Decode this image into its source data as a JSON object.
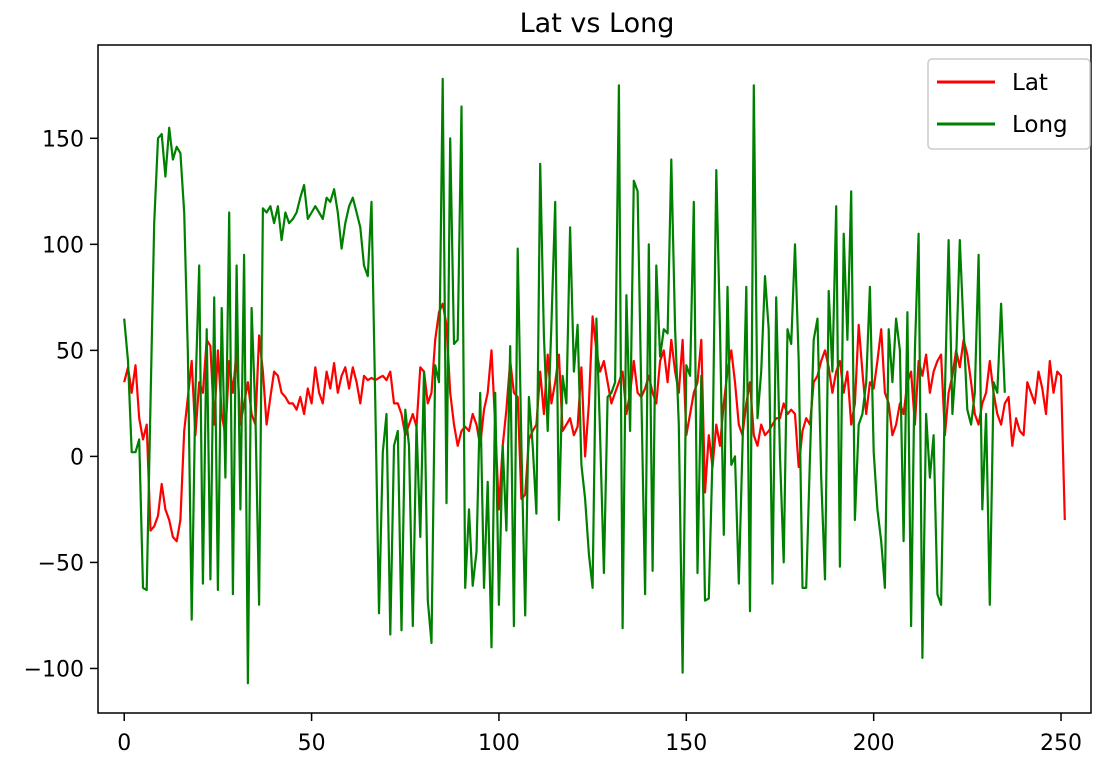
{
  "chart_data": {
    "type": "line",
    "title": "Lat vs Long",
    "xlabel": "",
    "ylabel": "",
    "xlim": [
      -7,
      258
    ],
    "ylim": [
      -121,
      194
    ],
    "x_ticks": [
      0,
      50,
      100,
      150,
      200,
      250
    ],
    "y_ticks": [
      -100,
      -50,
      0,
      50,
      100,
      150
    ],
    "x_tick_labels": [
      "0",
      "50",
      "100",
      "150",
      "200",
      "250"
    ],
    "y_tick_labels": [
      "−100",
      "−50",
      "0",
      "50",
      "100",
      "150"
    ],
    "grid": false,
    "legend_position": "top-right",
    "series": [
      {
        "name": "Lat",
        "color": "#ff0000",
        "values": [
          35,
          42,
          30,
          43,
          18,
          8,
          15,
          -35,
          -33,
          -28,
          -13,
          -25,
          -30,
          -38,
          -40,
          -30,
          12,
          28,
          45,
          10,
          35,
          30,
          55,
          52,
          15,
          50,
          20,
          10,
          45,
          30,
          50,
          15,
          25,
          35,
          20,
          15,
          57,
          40,
          15,
          28,
          40,
          38,
          30,
          28,
          25,
          25,
          22,
          28,
          20,
          32,
          25,
          42,
          30,
          25,
          40,
          32,
          44,
          30,
          38,
          42,
          32,
          42,
          35,
          25,
          38,
          36,
          37,
          36,
          37,
          38,
          36,
          40,
          25,
          25,
          20,
          10,
          15,
          20,
          14,
          42,
          40,
          25,
          30,
          55,
          68,
          72,
          62,
          30,
          15,
          5,
          12,
          14,
          12,
          20,
          15,
          5,
          22,
          30,
          50,
          15,
          -25,
          5,
          22,
          45,
          30,
          28,
          -20,
          -18,
          8,
          12,
          15,
          40,
          20,
          48,
          25,
          35,
          48,
          12,
          15,
          18,
          10,
          14,
          42,
          0,
          25,
          66,
          50,
          40,
          45,
          35,
          25,
          30,
          35,
          40,
          20,
          30,
          45,
          30,
          28,
          32,
          38,
          30,
          25,
          45,
          50,
          35,
          55,
          40,
          30,
          55,
          10,
          20,
          30,
          35,
          55,
          -17,
          10,
          -5,
          15,
          5,
          25,
          40,
          50,
          35,
          15,
          10,
          25,
          35,
          10,
          5,
          15,
          10,
          12,
          15,
          18,
          18,
          25,
          20,
          22,
          20,
          -5,
          12,
          18,
          15,
          35,
          38,
          45,
          50,
          42,
          30,
          40,
          45,
          30,
          40,
          15,
          25,
          62,
          40,
          20,
          35,
          32,
          45,
          60,
          30,
          25,
          10,
          15,
          25,
          20,
          35,
          40,
          15,
          45,
          38,
          48,
          30,
          40,
          45,
          48,
          10,
          30,
          38,
          50,
          42,
          55,
          48,
          35,
          20,
          15,
          25,
          30,
          45,
          30,
          20,
          15,
          25,
          28,
          5,
          18,
          12,
          10,
          35,
          30,
          25,
          40,
          32,
          20,
          45,
          30,
          40,
          38,
          -30
        ]
      },
      {
        "name": "Long",
        "color": "#008000",
        "values": [
          65,
          45,
          2,
          2,
          8,
          -62,
          -63,
          25,
          110,
          150,
          152,
          132,
          155,
          140,
          146,
          143,
          115,
          48,
          -77,
          30,
          90,
          -60,
          60,
          -58,
          75,
          -63,
          70,
          -10,
          115,
          -65,
          90,
          -25,
          95,
          -107,
          70,
          20,
          -70,
          117,
          115,
          118,
          110,
          118,
          102,
          115,
          110,
          112,
          115,
          122,
          128,
          112,
          115,
          118,
          115,
          112,
          122,
          120,
          126,
          115,
          98,
          110,
          118,
          122,
          115,
          108,
          90,
          85,
          120,
          25,
          -74,
          2,
          20,
          -84,
          5,
          12,
          -82,
          22,
          5,
          -80,
          15,
          -38,
          40,
          -68,
          -88,
          43,
          35,
          178,
          -22,
          150,
          53,
          55,
          165,
          -62,
          -25,
          -61,
          -45,
          30,
          -62,
          -12,
          -90,
          30,
          -70,
          5,
          -35,
          52,
          -80,
          98,
          5,
          -75,
          28,
          5,
          -27,
          138,
          57,
          12,
          62,
          120,
          -30,
          38,
          25,
          108,
          40,
          62,
          -4,
          -20,
          -46,
          -62,
          65,
          10,
          -55,
          28,
          30,
          35,
          175,
          -81,
          76,
          12,
          130,
          125,
          30,
          -65,
          100,
          -54,
          90,
          47,
          60,
          58,
          140,
          60,
          15,
          -102,
          43,
          38,
          120,
          -55,
          38,
          -68,
          -67,
          0,
          135,
          60,
          -37,
          80,
          -4,
          0,
          -60,
          5,
          80,
          -73,
          175,
          18,
          40,
          85,
          60,
          -60,
          75,
          0,
          -50,
          60,
          53,
          100,
          45,
          -62,
          -62,
          0,
          55,
          65,
          -10,
          -58,
          78,
          40,
          118,
          -52,
          105,
          55,
          125,
          -30,
          15,
          20,
          35,
          80,
          2,
          -25,
          -40,
          -62,
          60,
          35,
          65,
          50,
          -40,
          68,
          -80,
          50,
          105,
          -95,
          20,
          -10,
          10,
          -65,
          -70,
          30,
          102,
          20,
          45,
          102,
          60,
          22,
          15,
          30,
          95,
          -25,
          20,
          -70,
          35,
          30,
          72,
          30
        ]
      }
    ]
  }
}
